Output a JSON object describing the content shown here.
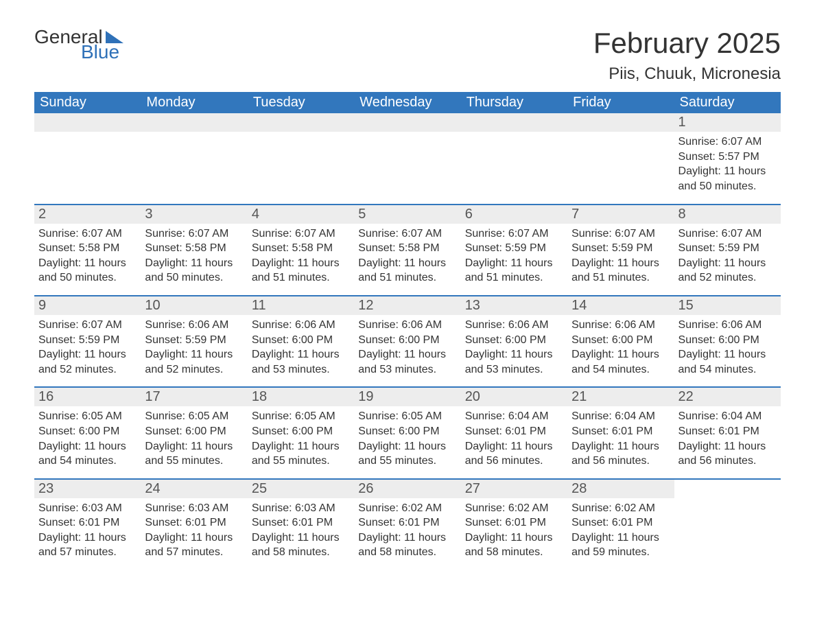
{
  "logo": {
    "text1": "General",
    "text2": "Blue",
    "accent_color": "#2f71b8"
  },
  "title": "February 2025",
  "location": "Piis, Chuuk, Micronesia",
  "colors": {
    "header_bg": "#3277bd",
    "header_text": "#ffffff",
    "strip_bg": "#ededed",
    "strip_border": "#3277bd",
    "body_text": "#333333",
    "page_bg": "#ffffff"
  },
  "fonts": {
    "title_size": 42,
    "location_size": 24,
    "weekday_size": 20,
    "daynum_size": 20,
    "body_size": 16
  },
  "weekdays": [
    "Sunday",
    "Monday",
    "Tuesday",
    "Wednesday",
    "Thursday",
    "Friday",
    "Saturday"
  ],
  "weeks": [
    [
      null,
      null,
      null,
      null,
      null,
      null,
      {
        "n": "1",
        "sunrise": "Sunrise: 6:07 AM",
        "sunset": "Sunset: 5:57 PM",
        "daylight": "Daylight: 11 hours and 50 minutes."
      }
    ],
    [
      {
        "n": "2",
        "sunrise": "Sunrise: 6:07 AM",
        "sunset": "Sunset: 5:58 PM",
        "daylight": "Daylight: 11 hours and 50 minutes."
      },
      {
        "n": "3",
        "sunrise": "Sunrise: 6:07 AM",
        "sunset": "Sunset: 5:58 PM",
        "daylight": "Daylight: 11 hours and 50 minutes."
      },
      {
        "n": "4",
        "sunrise": "Sunrise: 6:07 AM",
        "sunset": "Sunset: 5:58 PM",
        "daylight": "Daylight: 11 hours and 51 minutes."
      },
      {
        "n": "5",
        "sunrise": "Sunrise: 6:07 AM",
        "sunset": "Sunset: 5:58 PM",
        "daylight": "Daylight: 11 hours and 51 minutes."
      },
      {
        "n": "6",
        "sunrise": "Sunrise: 6:07 AM",
        "sunset": "Sunset: 5:59 PM",
        "daylight": "Daylight: 11 hours and 51 minutes."
      },
      {
        "n": "7",
        "sunrise": "Sunrise: 6:07 AM",
        "sunset": "Sunset: 5:59 PM",
        "daylight": "Daylight: 11 hours and 51 minutes."
      },
      {
        "n": "8",
        "sunrise": "Sunrise: 6:07 AM",
        "sunset": "Sunset: 5:59 PM",
        "daylight": "Daylight: 11 hours and 52 minutes."
      }
    ],
    [
      {
        "n": "9",
        "sunrise": "Sunrise: 6:07 AM",
        "sunset": "Sunset: 5:59 PM",
        "daylight": "Daylight: 11 hours and 52 minutes."
      },
      {
        "n": "10",
        "sunrise": "Sunrise: 6:06 AM",
        "sunset": "Sunset: 5:59 PM",
        "daylight": "Daylight: 11 hours and 52 minutes."
      },
      {
        "n": "11",
        "sunrise": "Sunrise: 6:06 AM",
        "sunset": "Sunset: 6:00 PM",
        "daylight": "Daylight: 11 hours and 53 minutes."
      },
      {
        "n": "12",
        "sunrise": "Sunrise: 6:06 AM",
        "sunset": "Sunset: 6:00 PM",
        "daylight": "Daylight: 11 hours and 53 minutes."
      },
      {
        "n": "13",
        "sunrise": "Sunrise: 6:06 AM",
        "sunset": "Sunset: 6:00 PM",
        "daylight": "Daylight: 11 hours and 53 minutes."
      },
      {
        "n": "14",
        "sunrise": "Sunrise: 6:06 AM",
        "sunset": "Sunset: 6:00 PM",
        "daylight": "Daylight: 11 hours and 54 minutes."
      },
      {
        "n": "15",
        "sunrise": "Sunrise: 6:06 AM",
        "sunset": "Sunset: 6:00 PM",
        "daylight": "Daylight: 11 hours and 54 minutes."
      }
    ],
    [
      {
        "n": "16",
        "sunrise": "Sunrise: 6:05 AM",
        "sunset": "Sunset: 6:00 PM",
        "daylight": "Daylight: 11 hours and 54 minutes."
      },
      {
        "n": "17",
        "sunrise": "Sunrise: 6:05 AM",
        "sunset": "Sunset: 6:00 PM",
        "daylight": "Daylight: 11 hours and 55 minutes."
      },
      {
        "n": "18",
        "sunrise": "Sunrise: 6:05 AM",
        "sunset": "Sunset: 6:00 PM",
        "daylight": "Daylight: 11 hours and 55 minutes."
      },
      {
        "n": "19",
        "sunrise": "Sunrise: 6:05 AM",
        "sunset": "Sunset: 6:00 PM",
        "daylight": "Daylight: 11 hours and 55 minutes."
      },
      {
        "n": "20",
        "sunrise": "Sunrise: 6:04 AM",
        "sunset": "Sunset: 6:01 PM",
        "daylight": "Daylight: 11 hours and 56 minutes."
      },
      {
        "n": "21",
        "sunrise": "Sunrise: 6:04 AM",
        "sunset": "Sunset: 6:01 PM",
        "daylight": "Daylight: 11 hours and 56 minutes."
      },
      {
        "n": "22",
        "sunrise": "Sunrise: 6:04 AM",
        "sunset": "Sunset: 6:01 PM",
        "daylight": "Daylight: 11 hours and 56 minutes."
      }
    ],
    [
      {
        "n": "23",
        "sunrise": "Sunrise: 6:03 AM",
        "sunset": "Sunset: 6:01 PM",
        "daylight": "Daylight: 11 hours and 57 minutes."
      },
      {
        "n": "24",
        "sunrise": "Sunrise: 6:03 AM",
        "sunset": "Sunset: 6:01 PM",
        "daylight": "Daylight: 11 hours and 57 minutes."
      },
      {
        "n": "25",
        "sunrise": "Sunrise: 6:03 AM",
        "sunset": "Sunset: 6:01 PM",
        "daylight": "Daylight: 11 hours and 58 minutes."
      },
      {
        "n": "26",
        "sunrise": "Sunrise: 6:02 AM",
        "sunset": "Sunset: 6:01 PM",
        "daylight": "Daylight: 11 hours and 58 minutes."
      },
      {
        "n": "27",
        "sunrise": "Sunrise: 6:02 AM",
        "sunset": "Sunset: 6:01 PM",
        "daylight": "Daylight: 11 hours and 58 minutes."
      },
      {
        "n": "28",
        "sunrise": "Sunrise: 6:02 AM",
        "sunset": "Sunset: 6:01 PM",
        "daylight": "Daylight: 11 hours and 59 minutes."
      },
      null
    ]
  ]
}
